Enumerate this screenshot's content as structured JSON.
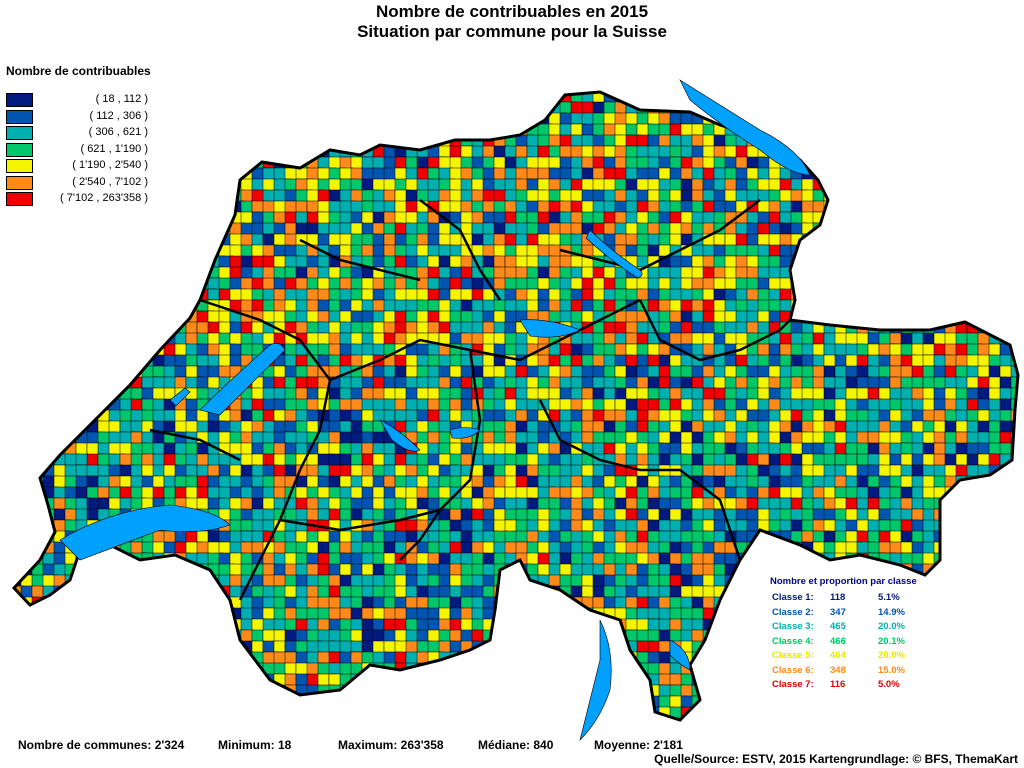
{
  "title": "Nombre de contribuables en 2015",
  "subtitle": "Situation par commune pour la Suisse",
  "legend": {
    "title": "Nombre de contribuables",
    "classes": [
      {
        "label": "( 18 , 112 )",
        "color": "#001a80"
      },
      {
        "label": "( 112 , 306 )",
        "color": "#0055b0"
      },
      {
        "label": "( 306 , 621 )",
        "color": "#00b0b0"
      },
      {
        "label": "( 621 , 1'190 )",
        "color": "#00c86a"
      },
      {
        "label": "( 1'190 , 2'540 )",
        "color": "#f5f500"
      },
      {
        "label": "( 2'540 , 7'102 )",
        "color": "#ff8a1a"
      },
      {
        "label": "( 7'102 , 263'358 )",
        "color": "#f00000"
      }
    ]
  },
  "stats": {
    "title": "Nombre et proportion par classe",
    "rows": [
      {
        "name": "Classe  1:",
        "count": "118",
        "pct": "5.1%",
        "color": "#001a80"
      },
      {
        "name": "Classe  2:",
        "count": "347",
        "pct": "14.9%",
        "color": "#0055b0"
      },
      {
        "name": "Classe  3:",
        "count": "465",
        "pct": "20.0%",
        "color": "#00b0b0"
      },
      {
        "name": "Classe  4:",
        "count": "466",
        "pct": "20.1%",
        "color": "#00c86a"
      },
      {
        "name": "Classe  5:",
        "count": "464",
        "pct": "20.0%",
        "color": "#e8e800"
      },
      {
        "name": "Classe  6:",
        "count": "348",
        "pct": "15.0%",
        "color": "#ff8a1a"
      },
      {
        "name": "Classe  7:",
        "count": "116",
        "pct": "5.0%",
        "color": "#e00000"
      }
    ]
  },
  "footer": {
    "communes": "Nombre de communes: 2'324",
    "minimum": "Minimum: 18",
    "maximum": "Maximum: 263'358",
    "mediane": "Médiane: 840",
    "moyenne": "Moyenne: 2'181",
    "source": "Quelle/Source: ESTV, 2015 Kartengrundlage: © BFS, ThemaKart"
  },
  "map": {
    "lake_color": "#00a0ff",
    "border_color": "#000000"
  }
}
